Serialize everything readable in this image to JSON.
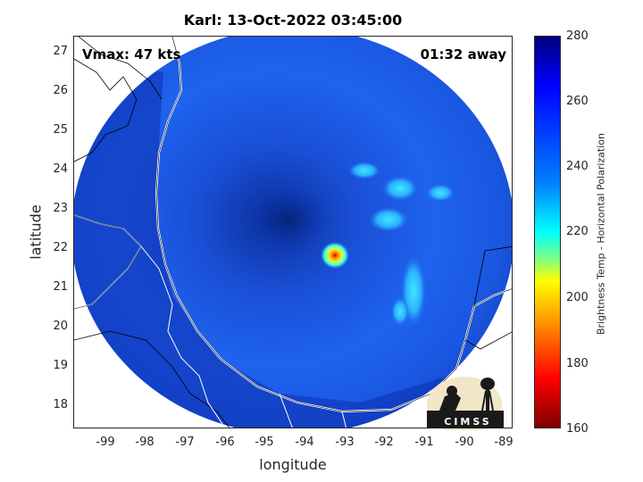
{
  "title": "Karl: 13-Oct-2022 03:45:00",
  "vmax_label": "Vmax: 47 kts",
  "time_label": "01:32 away",
  "xlabel": "longitude",
  "ylabel": "latitude",
  "colorbar_label": "Brightness Temp - Horizontal Polarization",
  "logo_text": "CIMSS",
  "x_ticks": [
    "-99",
    "-98",
    "-97",
    "-96",
    "-95",
    "-94",
    "-93",
    "-92",
    "-91",
    "-90",
    "-89"
  ],
  "y_ticks": [
    "27",
    "26",
    "25",
    "24",
    "23",
    "22",
    "21",
    "20",
    "19",
    "18"
  ],
  "colorbar_ticks": [
    "280",
    "260",
    "240",
    "220",
    "200",
    "180",
    "160"
  ],
  "colorbar_colors": [
    "#00007f",
    "#0000ff",
    "#0080ff",
    "#00ffff",
    "#ffff00",
    "#ff0000",
    "#7f0000"
  ],
  "map": {
    "xlim": [
      -99.9,
      -88.9
    ],
    "ylim": [
      17.4,
      27.5
    ],
    "swath_center_lon": -94.3,
    "swath_center_lat": 22.2,
    "storm_warm_core": {
      "lon": -93.4,
      "lat": 21.8
    }
  }
}
